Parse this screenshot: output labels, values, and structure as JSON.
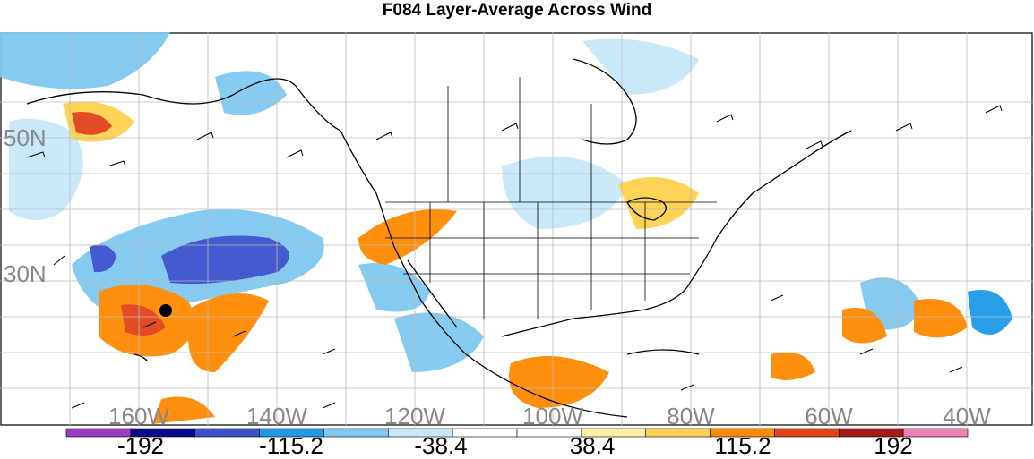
{
  "title": "F084 Layer-Average Across Wind",
  "lat_labels": [
    "50N",
    "30N"
  ],
  "lon_labels": [
    "160W",
    "140W",
    "120W",
    "100W",
    "80W",
    "60W",
    "40W"
  ],
  "colorbar": {
    "colors": [
      "#9a3ec6",
      "#0b0b8a",
      "#3a52cc",
      "#1f9ae8",
      "#7fc8f0",
      "#c7e8f8",
      "#ffffff",
      "#ffffff",
      "#fff0a8",
      "#ffd24d",
      "#ff8a00",
      "#e2421c",
      "#a81a1a",
      "#ee82b4"
    ],
    "labels": [
      "-192",
      "-115.2",
      "-38.4",
      "38.4",
      "115.2",
      "192"
    ]
  },
  "colors": {
    "ocean": "#ffffff",
    "coast": "#000000",
    "grid": "#bbbbbb",
    "axis_label": "#888888"
  }
}
